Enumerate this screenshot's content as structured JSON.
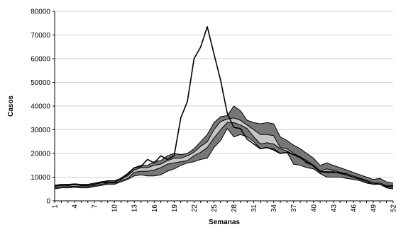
{
  "chart_data": {
    "type": "line",
    "title": "",
    "xlabel": "Semanas",
    "ylabel": "Casos",
    "ylim": [
      0,
      80000
    ],
    "y_ticks": [
      0,
      10000,
      20000,
      30000,
      40000,
      50000,
      60000,
      70000,
      80000
    ],
    "y_tick_labels": [
      "0",
      "10000",
      "20000",
      "30000",
      "40000",
      "50000",
      "60000",
      "70000",
      "80000"
    ],
    "x_ticks": [
      1,
      4,
      7,
      10,
      13,
      16,
      19,
      22,
      25,
      28,
      31,
      34,
      37,
      40,
      43,
      46,
      49,
      52
    ],
    "x_tick_labels": [
      "1",
      "4",
      "7",
      "10",
      "13",
      "16",
      "19",
      "22",
      "25",
      "28",
      "31",
      "34",
      "37",
      "40",
      "43",
      "46",
      "49",
      "52"
    ],
    "grid": "horizontal",
    "colors": {
      "outer_band": "#777777",
      "inner_band": "#c6c6c6",
      "line": "#000000",
      "grid": "#d0d0d0",
      "axis": "#000000"
    },
    "x": [
      1,
      2,
      3,
      4,
      5,
      6,
      7,
      8,
      9,
      10,
      11,
      12,
      13,
      14,
      15,
      16,
      17,
      18,
      19,
      20,
      21,
      22,
      23,
      24,
      25,
      26,
      27,
      28,
      29,
      30,
      31,
      32,
      33,
      34,
      35,
      36,
      37,
      38,
      39,
      40,
      41,
      42,
      43,
      44,
      45,
      46,
      47,
      48,
      49,
      50,
      51,
      52
    ],
    "series": [
      {
        "kind": "band-upper",
        "values": [
          6500,
          7000,
          7000,
          7200,
          7000,
          7000,
          7500,
          8000,
          8500,
          8500,
          9500,
          11000,
          14000,
          15000,
          15000,
          16500,
          17000,
          19000,
          20000,
          19500,
          20000,
          22000,
          25000,
          28000,
          33000,
          35500,
          36000,
          40000,
          38000,
          34000,
          33000,
          32500,
          33000,
          32500,
          27000,
          25500,
          23500,
          22000,
          20000,
          18000,
          15000,
          16000,
          15000,
          14000,
          13000,
          12000,
          11000,
          10000,
          9000,
          9500,
          8000,
          7500
        ]
      },
      {
        "kind": "band-q3",
        "values": [
          6000,
          6500,
          6500,
          6800,
          6500,
          6500,
          7000,
          7500,
          7800,
          8000,
          9000,
          10500,
          13000,
          14000,
          14000,
          15000,
          15500,
          17000,
          18000,
          18000,
          19000,
          20500,
          23000,
          25000,
          30000,
          33500,
          34500,
          35000,
          34000,
          32000,
          30000,
          28000,
          28000,
          27500,
          22500,
          22000,
          20000,
          18500,
          17000,
          15000,
          12500,
          13500,
          13000,
          12000,
          11500,
          10500,
          9500,
          8500,
          7500,
          7500,
          6500,
          6000
        ]
      },
      {
        "kind": "band-q1",
        "values": [
          5500,
          6000,
          6000,
          6200,
          6000,
          6000,
          6500,
          7000,
          7500,
          7500,
          8500,
          9500,
          12000,
          12500,
          12500,
          13000,
          14000,
          15500,
          16000,
          16500,
          17000,
          19000,
          20500,
          22500,
          26500,
          30000,
          33000,
          33000,
          32000,
          30500,
          27000,
          24000,
          24500,
          24000,
          22000,
          21000,
          19500,
          18000,
          16500,
          14500,
          12000,
          12500,
          12500,
          11500,
          11000,
          10000,
          9000,
          8000,
          7000,
          7000,
          6000,
          5500
        ]
      },
      {
        "kind": "band-lower",
        "values": [
          5000,
          5500,
          5500,
          5700,
          5500,
          5500,
          6000,
          6500,
          7000,
          7000,
          8000,
          9000,
          10500,
          11000,
          10500,
          10500,
          11000,
          12500,
          13500,
          15000,
          16000,
          16500,
          17500,
          18000,
          22500,
          25500,
          30500,
          27000,
          28000,
          27000,
          25000,
          22000,
          22500,
          22000,
          20000,
          20500,
          15500,
          15000,
          14000,
          13500,
          11500,
          10000,
          10000,
          10000,
          9500,
          9000,
          8500,
          7500,
          7000,
          7000,
          5500,
          5000
        ]
      },
      {
        "kind": "line",
        "values": [
          6500,
          6800,
          6500,
          7000,
          6500,
          6500,
          7000,
          8000,
          8000,
          7800,
          9500,
          11500,
          14000,
          14500,
          17500,
          16000,
          19000,
          17500,
          19000,
          35000,
          42000,
          60000,
          65000,
          73500,
          62000,
          51000,
          37000,
          31000,
          30500,
          26000,
          24000,
          22000,
          22500,
          21500,
          20000,
          20500,
          19500,
          18500,
          16000,
          15000,
          12500,
          12000,
          12000,
          12000,
          11000,
          10000,
          9500,
          8500,
          7500,
          7000,
          6000,
          6500
        ]
      }
    ]
  }
}
